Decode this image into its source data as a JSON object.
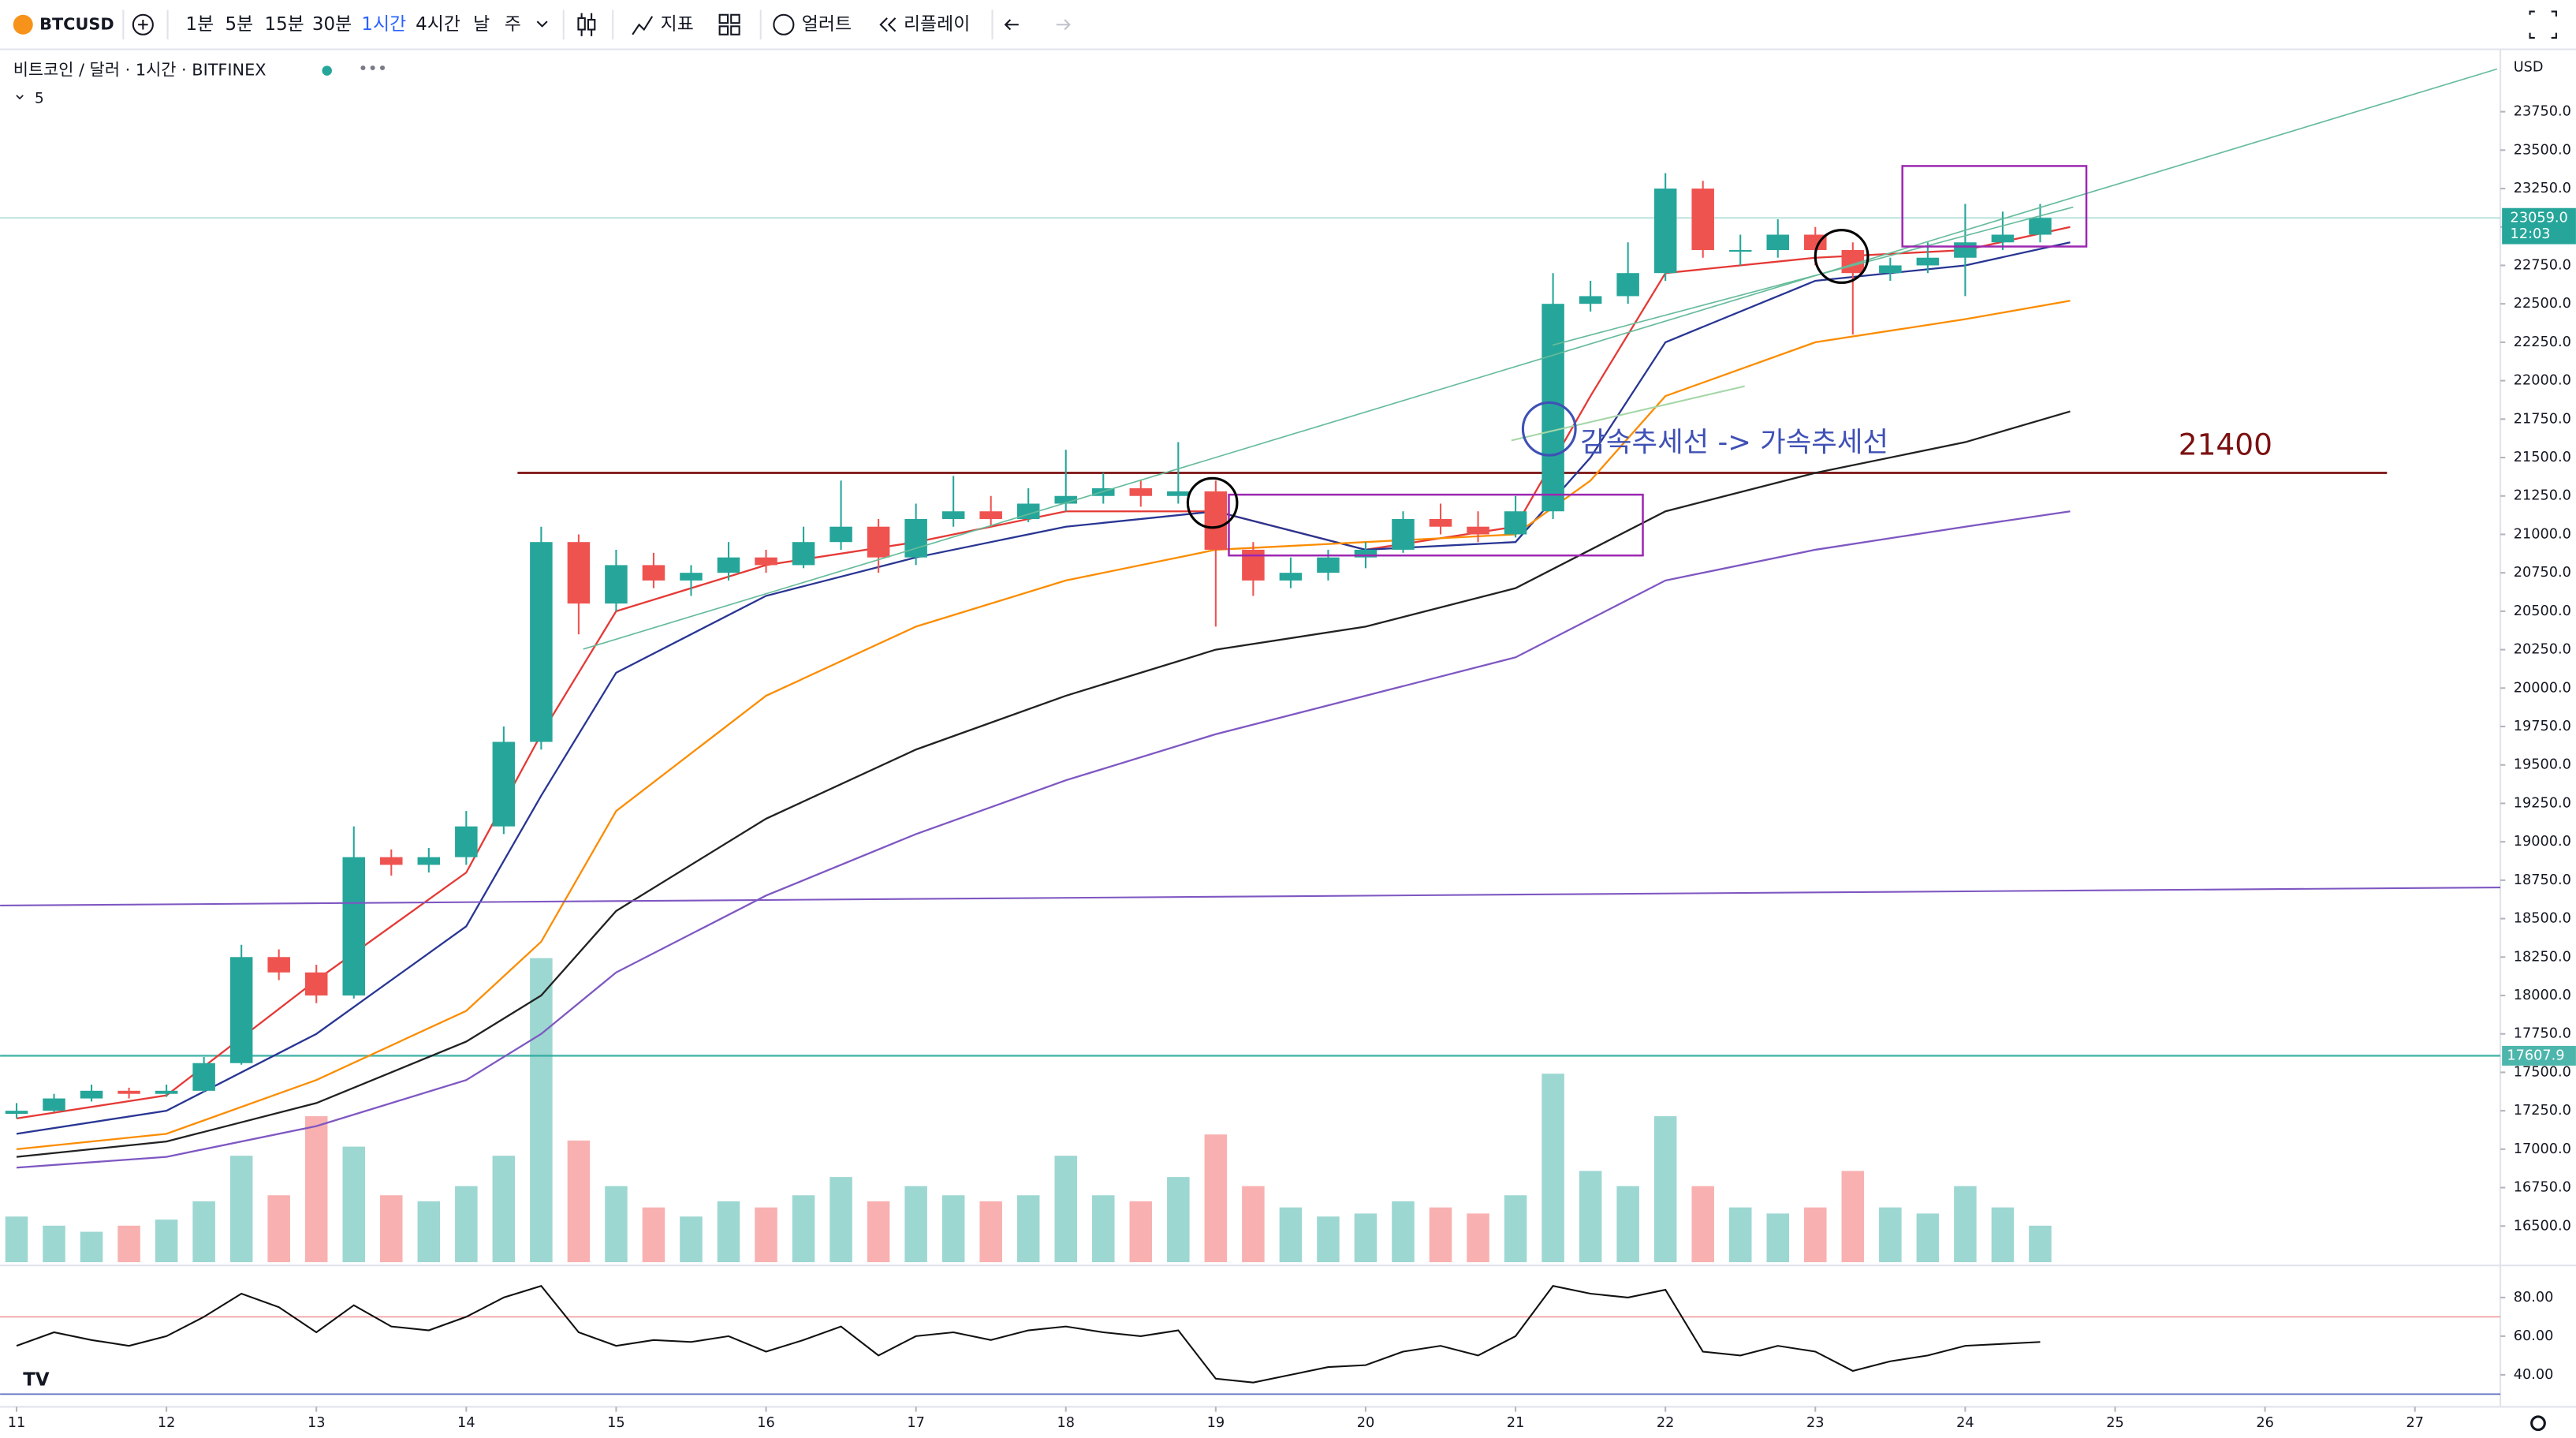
{
  "toolbar": {
    "symbol": "BTCUSD",
    "intervals": [
      "1분",
      "5분",
      "15분",
      "30분",
      "1시간",
      "4시간",
      "날",
      "주"
    ],
    "indicators": "지표",
    "alerts": "얼러트",
    "replay": "리플레이"
  },
  "chart_data": {
    "type": "candlestick",
    "title": "비트코인 / 달러 · 1시간 · BITFINEX",
    "indicator_input": "5",
    "currency": "USD",
    "up_color": "#26a69a",
    "down_color": "#ef5350",
    "x": [
      11,
      11.25,
      11.5,
      11.75,
      12,
      12.25,
      12.5,
      12.75,
      13,
      13.25,
      13.5,
      13.75,
      14,
      14.25,
      14.5,
      14.75,
      15,
      15.25,
      15.5,
      15.75,
      16,
      16.25,
      16.5,
      16.75,
      17,
      17.25,
      17.5,
      17.75,
      18,
      18.25,
      18.5,
      18.75,
      19,
      19.25,
      19.5,
      19.75,
      20,
      20.25,
      20.5,
      20.75,
      21,
      21.25,
      21.5,
      21.75,
      22,
      22.25,
      22.5,
      22.75,
      23,
      23.25,
      23.5,
      23.75,
      24,
      24.25,
      24.5
    ],
    "open": [
      17230,
      17250,
      17330,
      17380,
      17360,
      17380,
      17560,
      18250,
      18150,
      18000,
      18900,
      18850,
      18900,
      19100,
      19650,
      20950,
      20550,
      20800,
      20700,
      20750,
      20850,
      20800,
      20950,
      21050,
      20850,
      21100,
      21150,
      21100,
      21200,
      21250,
      21300,
      21250,
      21280,
      20900,
      20700,
      20750,
      20850,
      20900,
      21100,
      21050,
      21000,
      21150,
      22500,
      22550,
      22700,
      23250,
      22850,
      22850,
      22950,
      22850,
      22700,
      22750,
      22800,
      22900,
      22950
    ],
    "high": [
      17300,
      17360,
      17420,
      17400,
      17420,
      17600,
      18330,
      18300,
      18200,
      19100,
      18950,
      18960,
      19200,
      19750,
      21050,
      21000,
      20900,
      20880,
      20800,
      20950,
      20900,
      21050,
      21350,
      21100,
      21200,
      21380,
      21250,
      21300,
      21550,
      21400,
      21350,
      21600,
      21350,
      20950,
      20850,
      20900,
      20950,
      21150,
      21200,
      21150,
      21250,
      22700,
      22650,
      22900,
      23350,
      23300,
      22950,
      23050,
      23000,
      22900,
      22800,
      22900,
      23150,
      23100,
      23150
    ],
    "low": [
      17200,
      17240,
      17310,
      17330,
      17340,
      17370,
      17550,
      18100,
      17950,
      17980,
      18780,
      18800,
      18850,
      19050,
      19600,
      20350,
      20500,
      20650,
      20600,
      20700,
      20750,
      20780,
      20900,
      20750,
      20800,
      21050,
      21050,
      21080,
      21150,
      21200,
      21180,
      21200,
      20400,
      20600,
      20650,
      20700,
      20780,
      20880,
      21000,
      20950,
      20980,
      21100,
      22450,
      22500,
      22650,
      22800,
      22750,
      22800,
      22750,
      22300,
      22650,
      22700,
      22550,
      22850,
      22900
    ],
    "close": [
      17250,
      17330,
      17380,
      17360,
      17380,
      17560,
      18250,
      18150,
      18000,
      18900,
      18850,
      18900,
      19100,
      19650,
      20950,
      20550,
      20800,
      20700,
      20750,
      20850,
      20800,
      20950,
      21050,
      20850,
      21100,
      21150,
      21100,
      21200,
      21250,
      21300,
      21250,
      21280,
      20900,
      20700,
      20750,
      20850,
      20900,
      21100,
      21050,
      21000,
      21150,
      22500,
      22550,
      22700,
      23250,
      22850,
      22850,
      22950,
      22850,
      22700,
      22750,
      22800,
      22900,
      22950,
      23059
    ],
    "volume": [
      15,
      12,
      10,
      12,
      14,
      20,
      35,
      22,
      48,
      38,
      22,
      20,
      25,
      35,
      100,
      40,
      25,
      18,
      15,
      20,
      18,
      22,
      28,
      20,
      25,
      22,
      20,
      22,
      35,
      22,
      20,
      28,
      42,
      25,
      18,
      15,
      16,
      20,
      18,
      16,
      22,
      62,
      30,
      25,
      48,
      25,
      18,
      16,
      18,
      30,
      18,
      16,
      25,
      18,
      12
    ],
    "moving_average_x": [
      11,
      12,
      13,
      14,
      14.5,
      15,
      16,
      17,
      18,
      19,
      20,
      21,
      21.5,
      22,
      23,
      24,
      24.7
    ],
    "moving_averages": [
      {
        "color": "#e53935",
        "values": [
          17200,
          17350,
          18100,
          18800,
          19700,
          20500,
          20800,
          20950,
          21150,
          21150,
          20900,
          21050,
          21900,
          22700,
          22800,
          22850,
          23000
        ]
      },
      {
        "color": "#283593",
        "values": [
          17100,
          17250,
          17750,
          18450,
          19300,
          20100,
          20600,
          20850,
          21050,
          21150,
          20900,
          20950,
          21500,
          22250,
          22650,
          22750,
          22900
        ]
      },
      {
        "color": "#fb8c00",
        "values": [
          17000,
          17100,
          17450,
          17900,
          18350,
          19200,
          19950,
          20400,
          20700,
          20900,
          20950,
          21000,
          21350,
          21900,
          22250,
          22400,
          22520
        ]
      },
      {
        "color": "#212121",
        "values": [
          16950,
          17050,
          17300,
          17700,
          18000,
          18550,
          19150,
          19600,
          19950,
          20250,
          20400,
          20650,
          20900,
          21150,
          21400,
          21600,
          21800
        ]
      },
      {
        "color": "#7e57c2",
        "values": [
          16880,
          16950,
          17150,
          17450,
          17750,
          18150,
          18650,
          19050,
          19400,
          19700,
          19950,
          20200,
          20450,
          20700,
          20900,
          21050,
          21150
        ]
      }
    ],
    "level": 21400,
    "level_color": "#7b1010",
    "horizontal_line": {
      "value": 17607.9,
      "label": "17607.9",
      "color": "#4db6ac"
    },
    "last_price": {
      "value": 23059,
      "label": "23059.0",
      "countdown": "12:03",
      "color": "#26a69a"
    },
    "annotation": "감속추세선 -> 가속추세선",
    "xlim": [
      10.89,
      27.57
    ],
    "xticks": [
      11,
      12,
      13,
      14,
      15,
      16,
      17,
      18,
      19,
      20,
      21,
      22,
      23,
      24,
      25,
      26,
      27
    ],
    "ylim": [
      16265,
      24156
    ],
    "yticks": [
      {
        "value": 16500,
        "label": "16500.0"
      },
      {
        "value": 16750,
        "label": "16750.0"
      },
      {
        "value": 17000,
        "label": "17000.0"
      },
      {
        "value": 17250,
        "label": "17250.0"
      },
      {
        "value": 17500,
        "label": "17500.0"
      },
      {
        "value": 17750,
        "label": "17750.0"
      },
      {
        "value": 18000,
        "label": "18000.0"
      },
      {
        "value": 18250,
        "label": "18250.0"
      },
      {
        "value": 18500,
        "label": "18500.0"
      },
      {
        "value": 18750,
        "label": "18750.0"
      },
      {
        "value": 19000,
        "label": "19000.0"
      },
      {
        "value": 19250,
        "label": "19250.0"
      },
      {
        "value": 19500,
        "label": "19500.0"
      },
      {
        "value": 19750,
        "label": "19750.0"
      },
      {
        "value": 20000,
        "label": "20000.0"
      },
      {
        "value": 20250,
        "label": "20250.0"
      },
      {
        "value": 20500,
        "label": "20500.0"
      },
      {
        "value": 20750,
        "label": "20750.0"
      },
      {
        "value": 21000,
        "label": "21000.0"
      },
      {
        "value": 21250,
        "label": "21250.0"
      },
      {
        "value": 21500,
        "label": "21500.0"
      },
      {
        "value": 21750,
        "label": "21750.0"
      },
      {
        "value": 22000,
        "label": "22000.0"
      },
      {
        "value": 22250,
        "label": "22250.0"
      },
      {
        "value": 22500,
        "label": "22500.0"
      },
      {
        "value": 22750,
        "label": "22750.0"
      },
      {
        "value": 23000,
        "label": "23000.0"
      },
      {
        "value": 23250,
        "label": "23250.0"
      },
      {
        "value": 23500,
        "label": "23500.0"
      },
      {
        "value": 23750,
        "label": "23750.0"
      }
    ],
    "rsi": {
      "color": "#111111",
      "values": [
        55,
        62,
        58,
        55,
        60,
        70,
        82,
        75,
        62,
        76,
        65,
        63,
        70,
        80,
        86,
        62,
        55,
        58,
        57,
        60,
        52,
        58,
        65,
        50,
        60,
        62,
        58,
        63,
        65,
        62,
        60,
        63,
        38,
        36,
        40,
        44,
        45,
        52,
        55,
        50,
        60,
        86,
        82,
        80,
        84,
        52,
        50,
        55,
        52,
        42,
        47,
        50,
        55,
        56,
        57
      ],
      "ylim": [
        24.3,
        94.9
      ],
      "yticks": [
        {
          "value": 40,
          "label": "40.00"
        },
        {
          "value": 60,
          "label": "60.00"
        },
        {
          "value": 80,
          "label": "80.00"
        }
      ],
      "levels": [
        30,
        70
      ],
      "level_colors": [
        "#5c6bc0",
        "#ef9a9a"
      ]
    }
  }
}
